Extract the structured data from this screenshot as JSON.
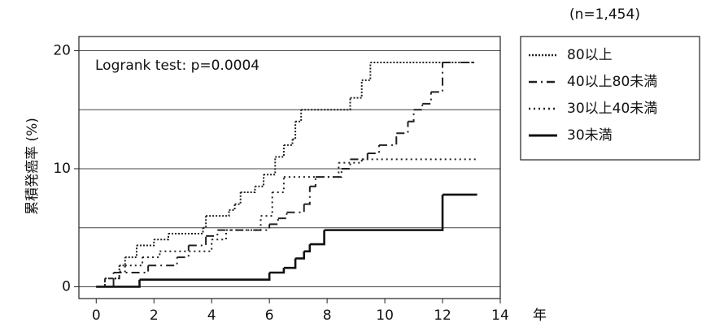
{
  "chart_data": {
    "type": "step",
    "annotation": "Logrank test: p=0.0004",
    "subtitle": "(n=1,454)",
    "y_label": "累積発癌率 (%)",
    "x_label": "年",
    "xlim": [
      -0.6,
      14
    ],
    "ylim": [
      -1,
      21.2
    ],
    "xticks": [
      0,
      2,
      4,
      6,
      8,
      10,
      12,
      14
    ],
    "yticks": [
      0,
      10,
      20
    ],
    "ygrid": [
      0,
      5,
      10,
      15,
      20
    ],
    "series": [
      {
        "name": "80以上",
        "style": "dotted",
        "color": "#222",
        "x": [
          0,
          0.3,
          0.8,
          1.0,
          1.4,
          2.0,
          2.5,
          3.7,
          3.8,
          4.6,
          4.8,
          5.0,
          5.5,
          5.8,
          6.2,
          6.5,
          6.8,
          6.9,
          7.1,
          8.8,
          9.2,
          9.5,
          13.1
        ],
        "values": [
          0,
          0.7,
          1.8,
          2.5,
          3.5,
          4,
          4.5,
          5,
          6,
          6.5,
          7,
          8,
          8.5,
          9.5,
          11,
          12,
          12.5,
          14,
          15,
          16,
          17.5,
          19,
          19
        ]
      },
      {
        "name": "40以上80未満",
        "style": "dashdot",
        "color": "#222",
        "x": [
          0,
          0.6,
          1.8,
          2.8,
          3.2,
          3.8,
          4.2,
          6.0,
          6.3,
          6.6,
          7.2,
          7.4,
          7.6,
          8.5,
          8.8,
          9.4,
          9.8,
          10.4,
          10.8,
          11.0,
          11.3,
          11.6,
          12.0,
          13.2
        ],
        "values": [
          0,
          1.2,
          1.8,
          2.5,
          3.5,
          4.3,
          4.8,
          5.3,
          5.8,
          6.3,
          7,
          8.5,
          9.3,
          10,
          10.8,
          11.3,
          12,
          13,
          14,
          15,
          15.5,
          16.5,
          19,
          19
        ]
      },
      {
        "name": "30以上40未満",
        "style": "sparse",
        "color": "#222",
        "x": [
          0,
          0.3,
          0.8,
          1.0,
          1.6,
          2.2,
          4.0,
          4.5,
          5.7,
          6.1,
          6.5,
          8.4,
          9.2,
          13.2
        ],
        "values": [
          0,
          0.7,
          1.3,
          1.8,
          2.5,
          3,
          4,
          4.8,
          6,
          8,
          9.3,
          10.5,
          10.8,
          10.8
        ]
      },
      {
        "name": "30未満",
        "style": "solid",
        "color": "#111",
        "x": [
          0,
          1.5,
          6.0,
          6.5,
          6.9,
          7.2,
          7.4,
          7.9,
          12.0,
          13.2
        ],
        "values": [
          0,
          0.6,
          1.2,
          1.6,
          2.4,
          3,
          3.6,
          4.8,
          7.8,
          7.8
        ]
      }
    ]
  }
}
